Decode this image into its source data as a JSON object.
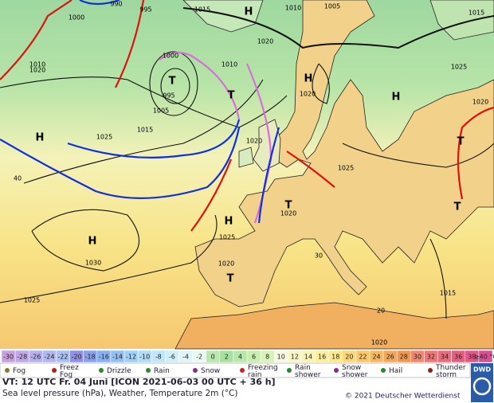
{
  "map": {
    "labels": [
      "1000",
      "990",
      "995",
      "1015",
      "H",
      "1010",
      "1005",
      "1015",
      "1020",
      "1010",
      "1020",
      "1000",
      "T",
      "995",
      "1005",
      "T",
      "1010",
      "1015",
      "1025",
      "H",
      "40",
      "H",
      "1020",
      "H",
      "1020",
      "1025",
      "T",
      "1020",
      "1025",
      "H",
      "1025",
      "H",
      "1030",
      "1020",
      "T",
      "1025",
      "T",
      "1020",
      "T",
      "1015",
      "1020",
      "30",
      "20"
    ]
  },
  "scale": {
    "labels": [
      "-30",
      "-28",
      "-26",
      "-24",
      "-22",
      "-20",
      "-18",
      "-16",
      "-14",
      "-12",
      "-10",
      "-8",
      "-6",
      "-4",
      "-2",
      "0",
      "2",
      "4",
      "6",
      "8",
      "10",
      "12",
      "14",
      "16",
      "18",
      "20",
      "22",
      "24",
      "26",
      "28",
      "30",
      "32",
      "34",
      "36",
      "38",
      "≥40 °C"
    ],
    "colors": [
      "#c8a0e0",
      "#c0a8e8",
      "#b8b0ee",
      "#b0b8f2",
      "#a8c0f4",
      "#9090e8",
      "#8aa0ee",
      "#88b0f2",
      "#90c0f6",
      "#a0d0f8",
      "#b0dcf8",
      "#c0e6f8",
      "#d0eef8",
      "#e0f4f8",
      "#eaf8f4",
      "#b8e8b0",
      "#a8e0a0",
      "#b8e8a8",
      "#c8eeb0",
      "#d8f2b8",
      "#f6f8e0",
      "#f8f6c8",
      "#faf2b0",
      "#fbee9c",
      "#fce88a",
      "#fcd878",
      "#fbc868",
      "#f8b860",
      "#f4a858",
      "#f09850",
      "#f08870",
      "#ec7878",
      "#e86c7c",
      "#e46080",
      "#e05888",
      "#d85090"
    ]
  },
  "legend": [
    "Fog",
    "Freez\nFog",
    "Drizzle",
    "Rain",
    "Snow",
    "Freezing\nrain",
    "Rain\nshower",
    "Snow\nshower",
    "Hail",
    "Thunder\nstorm"
  ],
  "footer": {
    "valid_time": "VT: 12 UTC Fr.  04 Juni [ICON 2021-06-03  00 UTC + 36 h]",
    "description": "Sea level pressure (hPa), Weather, Temperature 2m (°C)",
    "copyright": "© 2021 Deutscher Wetterdienst",
    "logo": "DWD"
  }
}
